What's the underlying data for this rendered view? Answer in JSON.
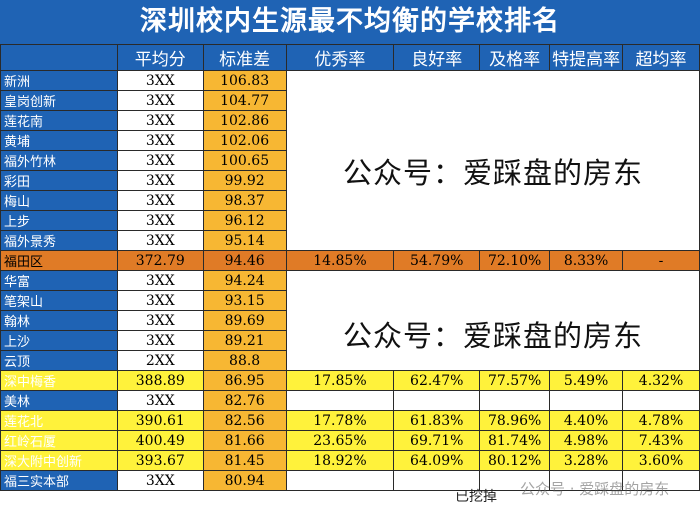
{
  "title": "深圳校内生源最不均衡的学校排名",
  "columns": [
    "",
    "平均分",
    "标准差",
    "优秀率",
    "良好率",
    "及格率",
    "特提高率",
    "超均率"
  ],
  "rows_group1": [
    {
      "name": "新洲",
      "avg": "3XX",
      "std": "106.83"
    },
    {
      "name": "皇岗创新",
      "avg": "3XX",
      "std": "104.77"
    },
    {
      "name": "莲花南",
      "avg": "3XX",
      "std": "102.86"
    },
    {
      "name": "黄埔",
      "avg": "3XX",
      "std": "102.06"
    },
    {
      "name": "福外竹林",
      "avg": "3XX",
      "std": "100.65"
    },
    {
      "name": "彩田",
      "avg": "3XX",
      "std": "99.92"
    },
    {
      "name": "梅山",
      "avg": "3XX",
      "std": "98.37"
    },
    {
      "name": "上步",
      "avg": "3XX",
      "std": "96.12"
    },
    {
      "name": "福外景秀",
      "avg": "3XX",
      "std": "95.14"
    }
  ],
  "district_row": {
    "name": "福田区",
    "avg": "372.79",
    "std": "94.46",
    "excellent": "14.85%",
    "good": "54.79%",
    "pass": "72.10%",
    "special": "8.33%",
    "above_avg": "-"
  },
  "rows_group2": [
    {
      "name": "华富",
      "avg": "3XX",
      "std": "94.24"
    },
    {
      "name": "笔架山",
      "avg": "3XX",
      "std": "93.15"
    },
    {
      "name": "翰林",
      "avg": "3XX",
      "std": "89.69"
    },
    {
      "name": "上沙",
      "avg": "3XX",
      "std": "89.21"
    },
    {
      "name": "云顶",
      "avg": "2XX",
      "std": "88.8"
    }
  ],
  "rows_group3": [
    {
      "name": "深中梅香",
      "avg": "388.89",
      "std": "86.95",
      "excellent": "17.85%",
      "good": "62.47%",
      "pass": "77.57%",
      "special": "5.49%",
      "above_avg": "4.32%",
      "style": "yellow"
    },
    {
      "name": "美林",
      "avg": "3XX",
      "std": "82.76",
      "excellent": "",
      "good": "",
      "pass": "",
      "special": "",
      "above_avg": "",
      "style": "plain"
    },
    {
      "name": "莲花北",
      "avg": "390.61",
      "std": "82.56",
      "excellent": "17.78%",
      "good": "61.83%",
      "pass": "78.96%",
      "special": "4.40%",
      "above_avg": "4.78%",
      "style": "yellow"
    },
    {
      "name": "红岭石厦",
      "avg": "400.49",
      "std": "81.66",
      "excellent": "23.65%",
      "good": "69.71%",
      "pass": "81.74%",
      "special": "4.98%",
      "above_avg": "7.43%",
      "style": "yellow"
    },
    {
      "name": "深大附中创新",
      "avg": "393.67",
      "std": "81.45",
      "excellent": "18.92%",
      "good": "64.09%",
      "pass": "80.12%",
      "special": "3.28%",
      "above_avg": "3.60%",
      "style": "yellow"
    },
    {
      "name": "福三实本部",
      "avg": "3XX",
      "std": "80.94",
      "excellent": "",
      "good": "",
      "pass": "",
      "special": "",
      "above_avg": "",
      "style": "plain"
    }
  ],
  "overlay_text_1": "公众号：爱踩盘的房东",
  "overlay_text_2": "公众号：爱踩盘的房东",
  "dugout_text": "已挖掉",
  "watermark_text": "公众号 · 爱踩盘的房东"
}
